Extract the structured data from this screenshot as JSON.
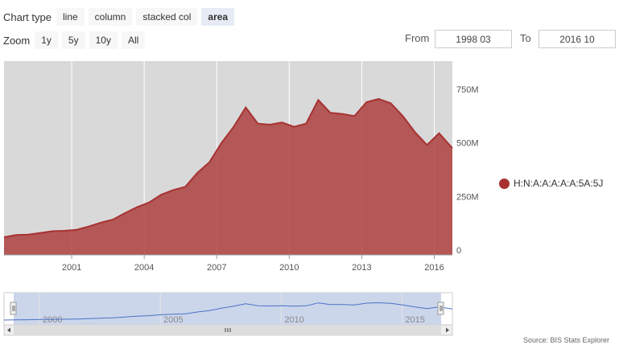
{
  "toolbar": {
    "chart_type_label": "Chart type",
    "chart_types": [
      "line",
      "column",
      "stacked col",
      "area"
    ],
    "active_chart_type": "area",
    "zoom_label": "Zoom",
    "zoom_options": [
      "1y",
      "5y",
      "10y",
      "All"
    ]
  },
  "range": {
    "from_label": "From",
    "from_value": "1998 03",
    "to_label": "To",
    "to_value": "2016 10"
  },
  "colors": {
    "series": "#a83232",
    "plot_bg": "#d9d9d9",
    "navigator_fill": "#ccd6eb",
    "navigator_line": "#4a72c4"
  },
  "chart_data": {
    "type": "area",
    "title": "",
    "xlabel": "",
    "ylabel": "",
    "x_unit": "year",
    "xlim": [
      1998.2,
      2016.75
    ],
    "ylim": [
      0,
      900
    ],
    "y_ticks": [
      0,
      250,
      500,
      750
    ],
    "y_tick_labels": [
      "0",
      "250M",
      "500M",
      "750M"
    ],
    "x_ticks": [
      2001,
      2004,
      2007,
      2010,
      2013,
      2016
    ],
    "x_tick_labels": [
      "2001",
      "2004",
      "2007",
      "2010",
      "2013",
      "2016"
    ],
    "grid": true,
    "legend": "right",
    "series": [
      {
        "name": "H:N:A:A:A:A:A:5A:5J",
        "x": [
          1998.2,
          1998.7,
          1999.2,
          1999.7,
          2000.2,
          2000.7,
          2001.2,
          2001.7,
          2002.2,
          2002.7,
          2003.2,
          2003.7,
          2004.2,
          2004.7,
          2005.2,
          2005.7,
          2006.2,
          2006.7,
          2007.2,
          2007.7,
          2008.2,
          2008.7,
          2009.2,
          2009.7,
          2010.2,
          2010.7,
          2011.2,
          2011.7,
          2012.2,
          2012.7,
          2013.2,
          2013.7,
          2014.2,
          2014.7,
          2015.2,
          2015.7,
          2016.2,
          2016.75
        ],
        "values": [
          60,
          70,
          72,
          80,
          88,
          90,
          95,
          110,
          128,
          142,
          172,
          200,
          222,
          258,
          280,
          295,
          360,
          410,
          500,
          575,
          665,
          590,
          585,
          595,
          575,
          590,
          700,
          640,
          635,
          625,
          690,
          705,
          685,
          625,
          550,
          490,
          545,
          475
        ]
      }
    ],
    "navigator": {
      "x_tick_labels": [
        "2000",
        "2005",
        "2010",
        "2015"
      ],
      "x_ticks": [
        2000,
        2005,
        2010,
        2015
      ],
      "xlim": [
        1998.2,
        2016.75
      ]
    }
  },
  "source": "Source: BIS Stats Explorer"
}
